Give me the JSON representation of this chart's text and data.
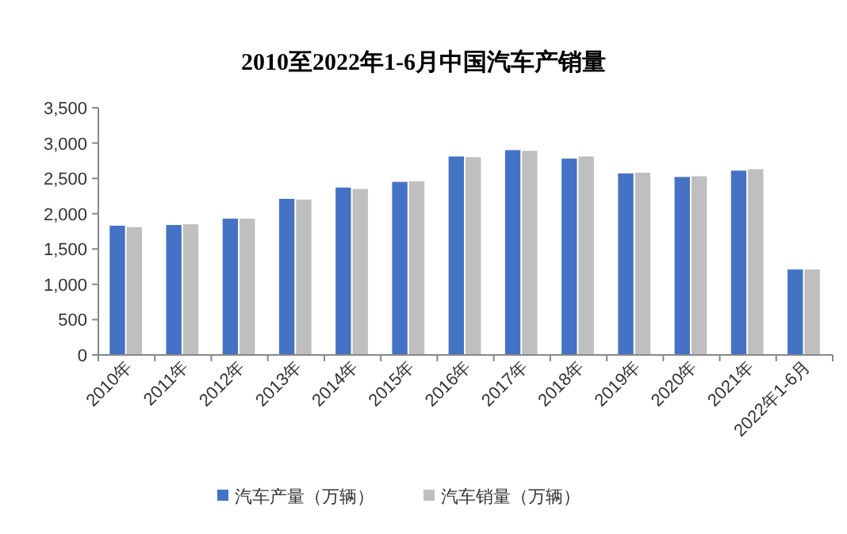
{
  "chart_data": {
    "type": "bar",
    "title": "2010至2022年1-6月中国汽车产销量",
    "categories": [
      "2010年",
      "2011年",
      "2012年",
      "2013年",
      "2014年",
      "2015年",
      "2016年",
      "2017年",
      "2018年",
      "2019年",
      "2020年",
      "2021年",
      "2022年1-6月"
    ],
    "series": [
      {
        "name": "汽车产量（万辆）",
        "color": "#4472c4",
        "values": [
          1830,
          1840,
          1930,
          2210,
          2370,
          2450,
          2810,
          2900,
          2780,
          2570,
          2520,
          2610,
          1210
        ]
      },
      {
        "name": "汽车销量（万辆）",
        "color": "#bfbfbf",
        "values": [
          1810,
          1850,
          1930,
          2200,
          2350,
          2460,
          2800,
          2890,
          2810,
          2580,
          2530,
          2630,
          1210
        ]
      }
    ],
    "ylim": [
      0,
      3500
    ],
    "yticks": [
      0,
      {
        "value": 500,
        "label": "500"
      },
      {
        "value": 1000,
        "label": "1,000"
      },
      {
        "value": 1500,
        "label": "1,500"
      },
      {
        "value": 2000,
        "label": "2,000"
      },
      {
        "value": 2500,
        "label": "2,500"
      },
      {
        "value": 3000,
        "label": "3,000"
      },
      {
        "value": 3500,
        "label": "3,500"
      }
    ],
    "grid": false,
    "legend": "bottom"
  }
}
